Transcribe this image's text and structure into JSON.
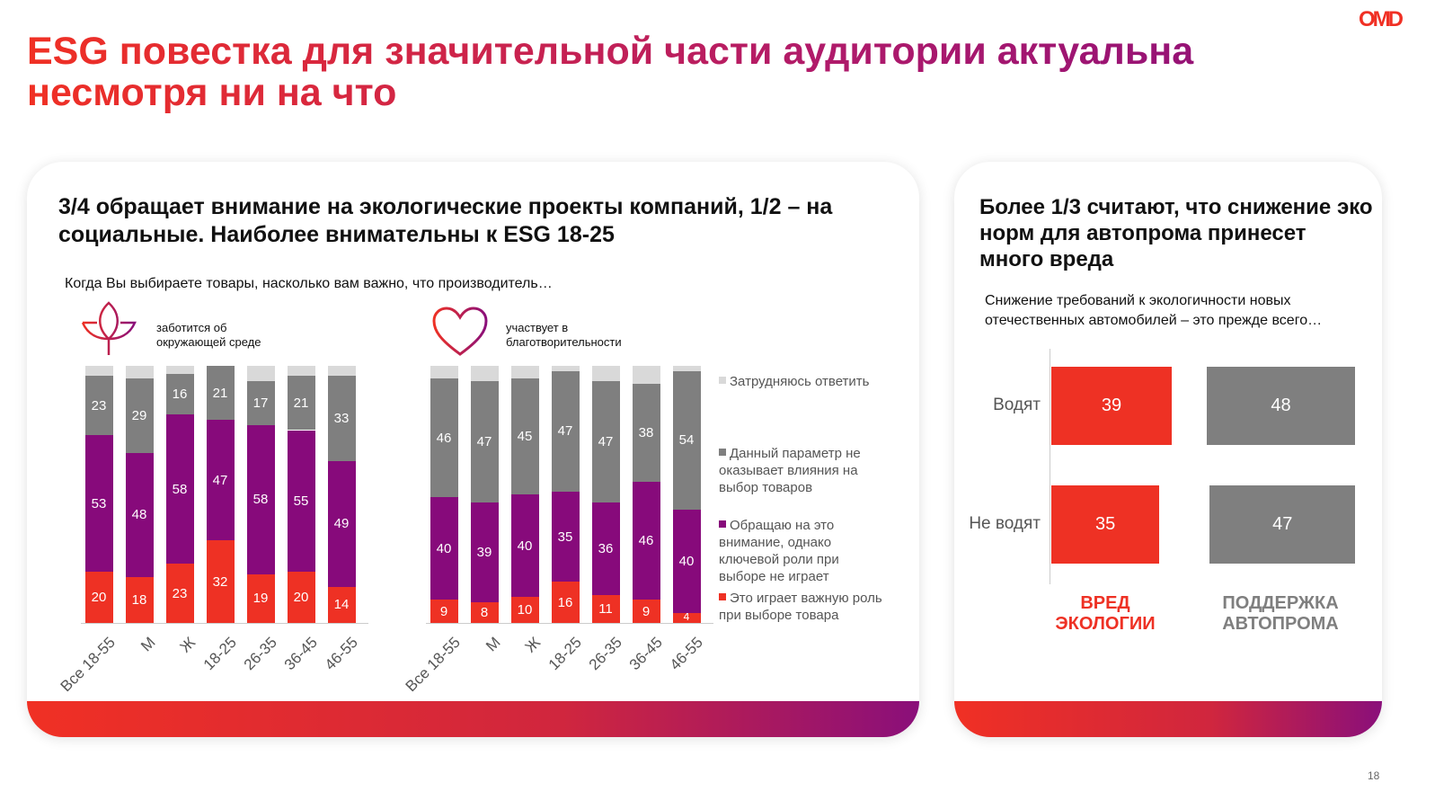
{
  "title": "ESG повестка для значительной части аудитории актуальна несмотря ни на что",
  "logo": "OMD",
  "page_number": "18",
  "colors": {
    "red": "#ee3124",
    "purple": "#870a7b",
    "gray": "#7f7f7f",
    "light": "#d9d9d9"
  },
  "left": {
    "heading": "3/4 обращает внимание на экологические проекты компаний, 1/2 – на социальные. Наиболее внимательны к ESG 18-25",
    "question": "Когда Вы выбираете товары, насколько вам важно, что производитель…",
    "legend": [
      "Затрудняюсь ответить",
      "Данный параметр не оказывает влияния на выбор товаров",
      "Обращаю на это внимание, однако ключевой роли при выборе не играет",
      "Это играет важную роль при выборе товара"
    ]
  },
  "chart_data": [
    {
      "type": "bar",
      "stacked": true,
      "title": "заботится об окружающей среде",
      "icon": "leaf-icon",
      "categories": [
        "Все 18-55",
        "М",
        "Ж",
        "18-25",
        "26-35",
        "36-45",
        "46-55"
      ],
      "series": [
        {
          "name": "Это играет важную роль при выборе товара",
          "values": [
            20,
            18,
            23,
            32,
            19,
            20,
            14
          ]
        },
        {
          "name": "Обращаю на это внимание, однако ключевой роли при выборе не играет",
          "values": [
            53,
            48,
            58,
            47,
            58,
            55,
            49
          ]
        },
        {
          "name": "Данный параметр не оказывает влияния на выбор товаров",
          "values": [
            23,
            29,
            16,
            21,
            17,
            21,
            33
          ]
        },
        {
          "name": "Затрудняюсь ответить",
          "values": [
            4,
            5,
            3,
            0,
            6,
            4,
            4
          ]
        }
      ],
      "ylim": [
        0,
        100
      ]
    },
    {
      "type": "bar",
      "stacked": true,
      "title": "участвует в благотворительности",
      "icon": "heart-icon",
      "categories": [
        "Все 18-55",
        "М",
        "Ж",
        "18-25",
        "26-35",
        "36-45",
        "46-55"
      ],
      "series": [
        {
          "name": "Это играет важную роль при выборе товара",
          "values": [
            9,
            8,
            10,
            16,
            11,
            9,
            4
          ]
        },
        {
          "name": "Обращаю на это внимание, однако ключевой роли при выборе не играет",
          "values": [
            40,
            39,
            40,
            35,
            36,
            46,
            40
          ]
        },
        {
          "name": "Данный параметр не оказывает влияния на выбор товаров",
          "values": [
            46,
            47,
            45,
            47,
            47,
            38,
            54
          ]
        },
        {
          "name": "Затрудняюсь ответить",
          "values": [
            5,
            6,
            5,
            2,
            6,
            7,
            2
          ]
        }
      ],
      "ylim": [
        0,
        100
      ]
    },
    {
      "type": "bar",
      "orientation": "horizontal",
      "categories": [
        "Водят",
        "Не водят"
      ],
      "series": [
        {
          "name": "ВРЕД ЭКОЛОГИИ",
          "values": [
            39,
            35
          ]
        },
        {
          "name": "ПОДДЕРЖКА АВТОПРОМА",
          "values": [
            48,
            47
          ]
        }
      ]
    }
  ],
  "right": {
    "heading": "Более 1/3 считают, что снижение эко норм для автопрома принесет много вреда",
    "question": "Снижение требований к экологичности новых отечественных автомобилей – это прежде всего…"
  }
}
